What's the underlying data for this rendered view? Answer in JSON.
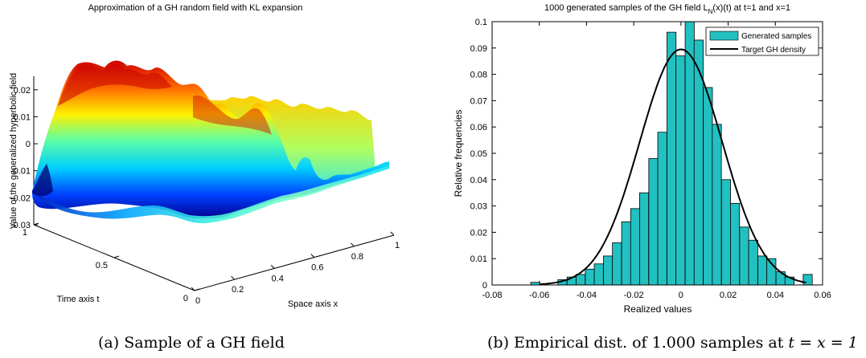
{
  "captions": {
    "a": "(a) Sample of a GH field",
    "b_prefix": "(b) Empirical dist. of 1.000 samples at ",
    "b_math": "t = x = 1"
  },
  "chart_data": [
    {
      "type": "surface",
      "title": "Approximation of a GH random field with KL expansion",
      "xlabel": "Space axis x",
      "ylabel": "Time axis t",
      "zlabel": "Value of the generalized hyperbolic field",
      "x_ticks": [
        "0",
        "0.2",
        "0.4",
        "0.6",
        "0.8",
        "1"
      ],
      "t_ticks": [
        "0",
        "0.5",
        "1"
      ],
      "z_ticks": [
        "-0.03",
        "-0.02",
        "-0.01",
        "0",
        "0.01",
        "0.02"
      ],
      "xlim": [
        0,
        1
      ],
      "tlim": [
        0,
        1
      ],
      "zlim": [
        -0.03,
        0.025
      ],
      "colormap": "jet"
    },
    {
      "type": "bar",
      "title_main": "1000 generated samples of the GH field L",
      "title_sub": "N",
      "title_tail": "(x)(t) at t=1 and x=1",
      "xlabel": "Realized values",
      "ylabel": "Relative frequencies",
      "xlim": [
        -0.08,
        0.06
      ],
      "ylim": [
        0,
        0.1
      ],
      "x_ticks": [
        "-0.08",
        "-0.06",
        "-0.04",
        "-0.02",
        "0",
        "0.02",
        "0.04",
        "0.06"
      ],
      "y_ticks": [
        "0",
        "0.01",
        "0.02",
        "0.03",
        "0.04",
        "0.05",
        "0.06",
        "0.07",
        "0.08",
        "0.09",
        "0.1"
      ],
      "bin_width": 0.00385,
      "bins": [
        {
          "x": -0.0617,
          "value": 0.001
        },
        {
          "x": -0.0502,
          "value": 0.002
        },
        {
          "x": -0.0463,
          "value": 0.003
        },
        {
          "x": -0.0425,
          "value": 0.004
        },
        {
          "x": -0.0386,
          "value": 0.006
        },
        {
          "x": -0.0348,
          "value": 0.008
        },
        {
          "x": -0.0309,
          "value": 0.011
        },
        {
          "x": -0.0271,
          "value": 0.016
        },
        {
          "x": -0.0232,
          "value": 0.024
        },
        {
          "x": -0.0194,
          "value": 0.029
        },
        {
          "x": -0.0156,
          "value": 0.035
        },
        {
          "x": -0.0117,
          "value": 0.048
        },
        {
          "x": -0.0079,
          "value": 0.058
        },
        {
          "x": -0.004,
          "value": 0.096
        },
        {
          "x": -0.0002,
          "value": 0.087
        },
        {
          "x": 0.0037,
          "value": 0.1
        },
        {
          "x": 0.0075,
          "value": 0.093
        },
        {
          "x": 0.0114,
          "value": 0.075
        },
        {
          "x": 0.0152,
          "value": 0.061
        },
        {
          "x": 0.0191,
          "value": 0.04
        },
        {
          "x": 0.0229,
          "value": 0.031
        },
        {
          "x": 0.0268,
          "value": 0.022
        },
        {
          "x": 0.0306,
          "value": 0.017
        },
        {
          "x": 0.0345,
          "value": 0.011
        },
        {
          "x": 0.0383,
          "value": 0.01
        },
        {
          "x": 0.0422,
          "value": 0.005
        },
        {
          "x": 0.046,
          "value": 0.003
        },
        {
          "x": 0.0537,
          "value": 0.004
        }
      ],
      "density": {
        "name": "Target GH density",
        "mean": 0.0,
        "sd": 0.0175,
        "peak": 0.0895,
        "x_range": [
          -0.06,
          0.053
        ]
      },
      "legend": [
        "Generated samples",
        "Target GH density"
      ],
      "legend_position": "top-right",
      "colors": {
        "bars": "#22C0C0",
        "density": "#000000"
      }
    }
  ]
}
